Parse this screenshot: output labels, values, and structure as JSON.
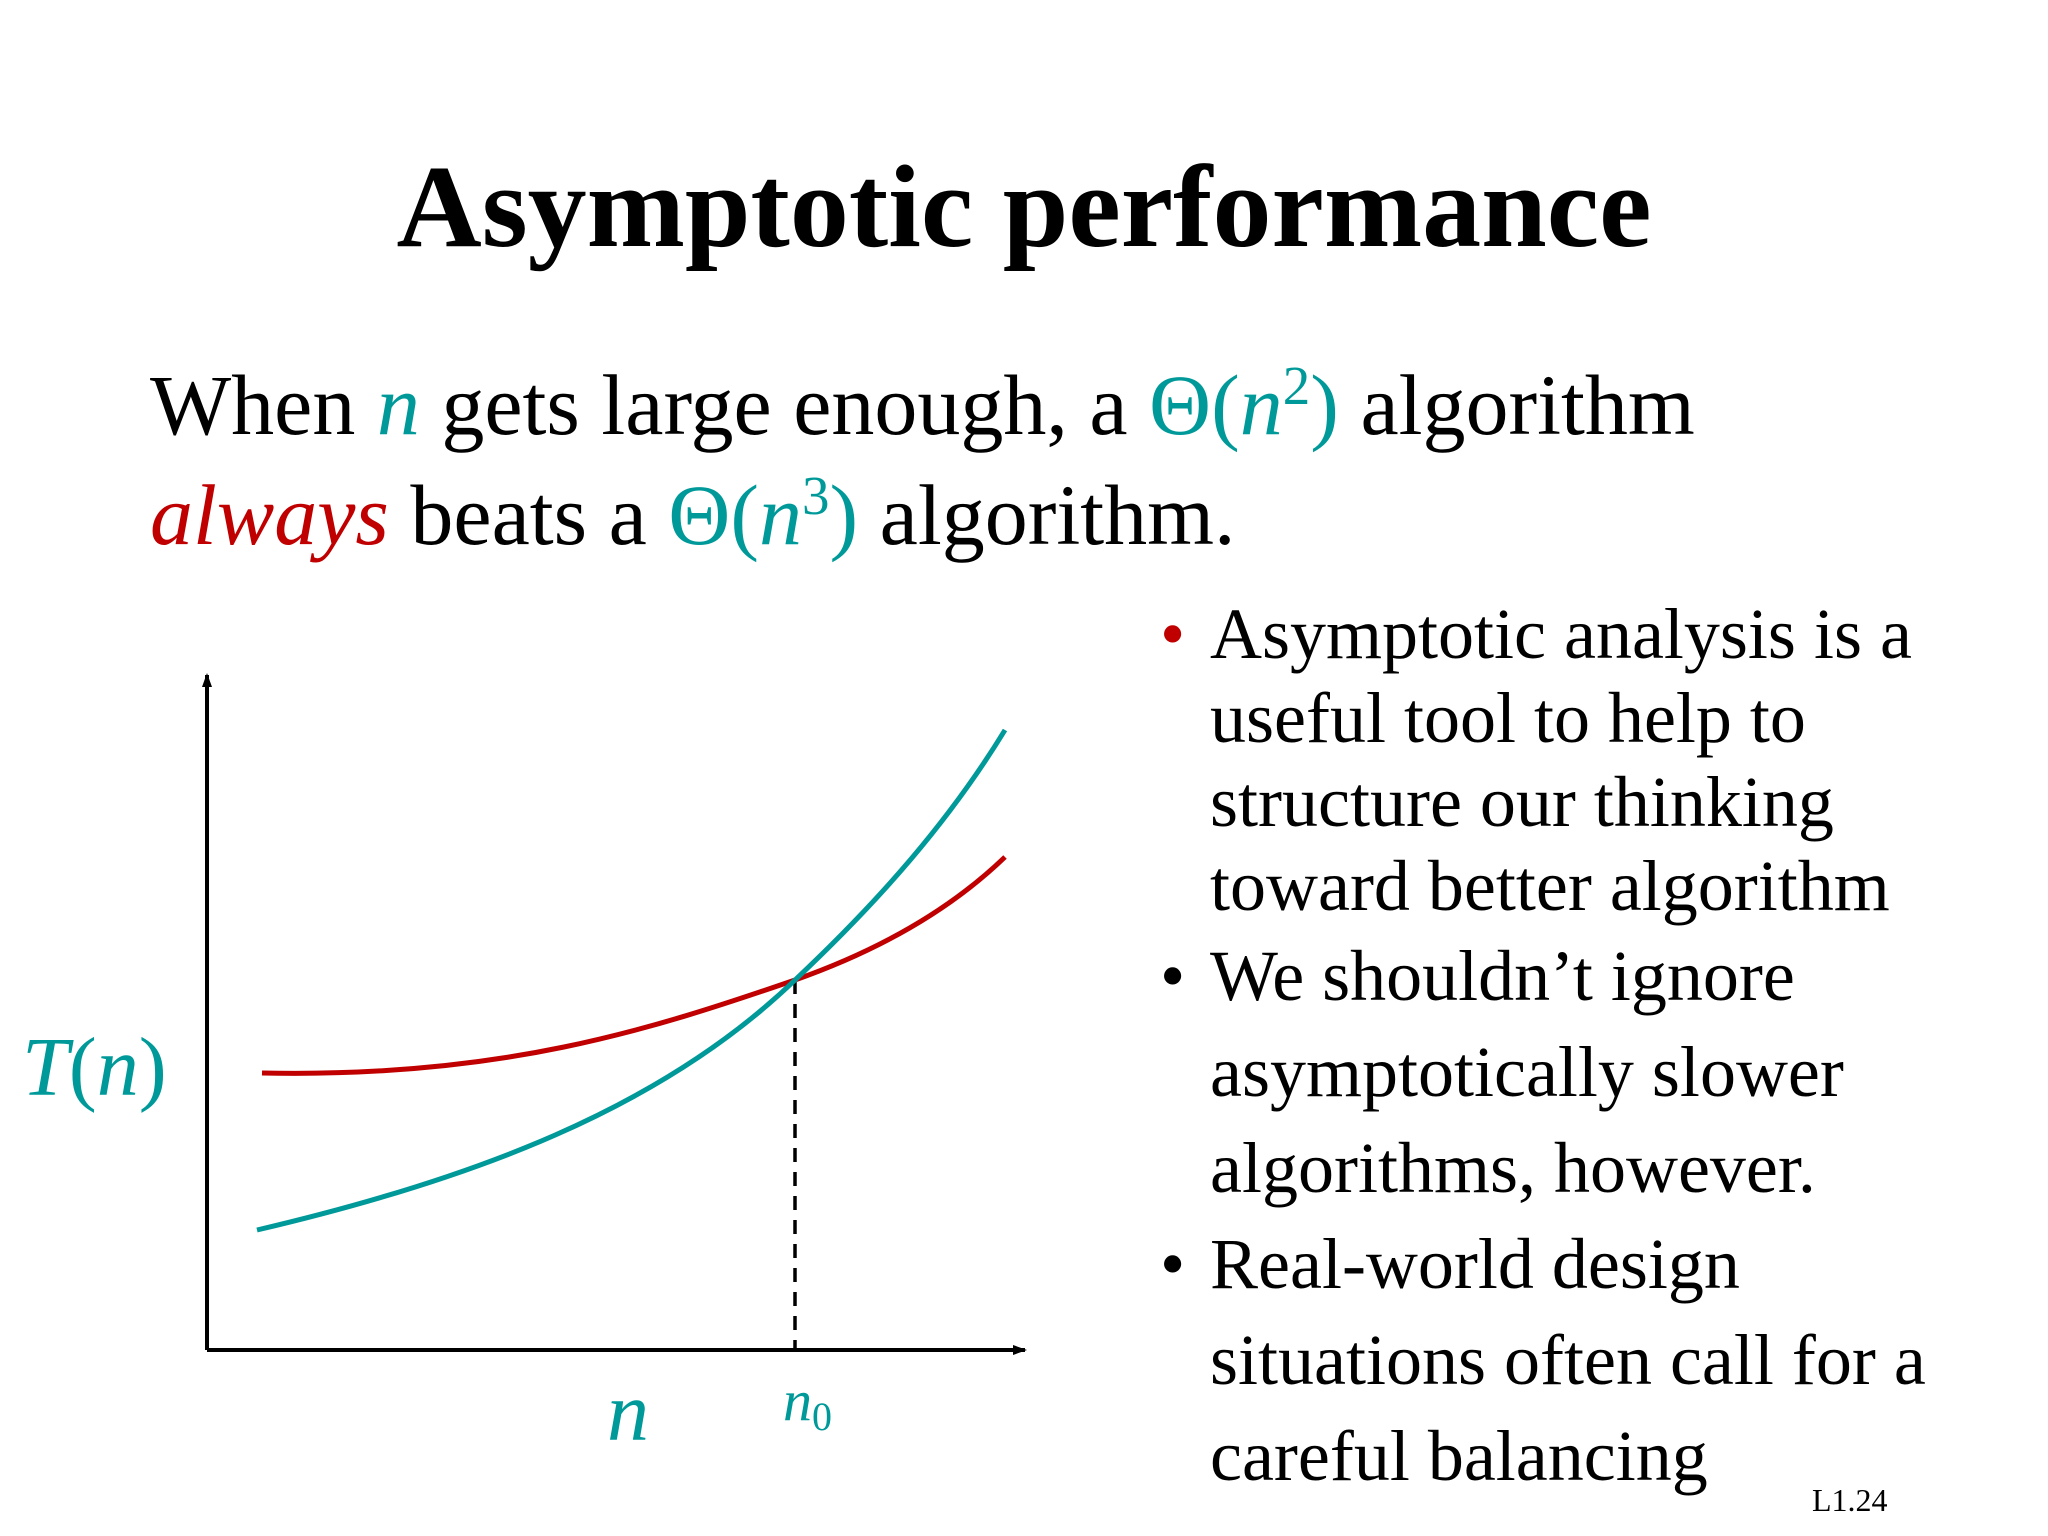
{
  "slide": {
    "title": "Asymptotic performance",
    "intro": {
      "line1_pre": "When ",
      "n": "n",
      "line1_mid": " gets large enough, a ",
      "theta1": "Θ(",
      "theta1_n": "n",
      "theta1_exp": "2",
      "theta1_close": ")",
      "line1_post": " algorithm",
      "always": "always",
      "line2_mid": " beats a ",
      "theta2": "Θ(",
      "theta2_n": "n",
      "theta2_exp": "3",
      "theta2_close": ")",
      "line2_post": " algorithm."
    },
    "bullets": [
      "Asymptotic analysis is a useful tool to help to structure our thinking toward better algorithm",
      " We shouldn’t ignore asymptotically slower algorithms, however.",
      "Real-world design situations often call for a careful balancing"
    ],
    "bullet_char": "•",
    "slide_number": "L1.24"
  },
  "chart_data": {
    "type": "line",
    "ylabel": "T(n)",
    "xlabel": "n",
    "crossover_label": "n0",
    "crossover_label_base": "n",
    "crossover_label_sub": "0",
    "series": [
      {
        "color": "#c00000"
      },
      {
        "color": "#009999"
      }
    ],
    "colors": {
      "accent_teal": "#009999",
      "accent_red": "#c00000"
    }
  }
}
